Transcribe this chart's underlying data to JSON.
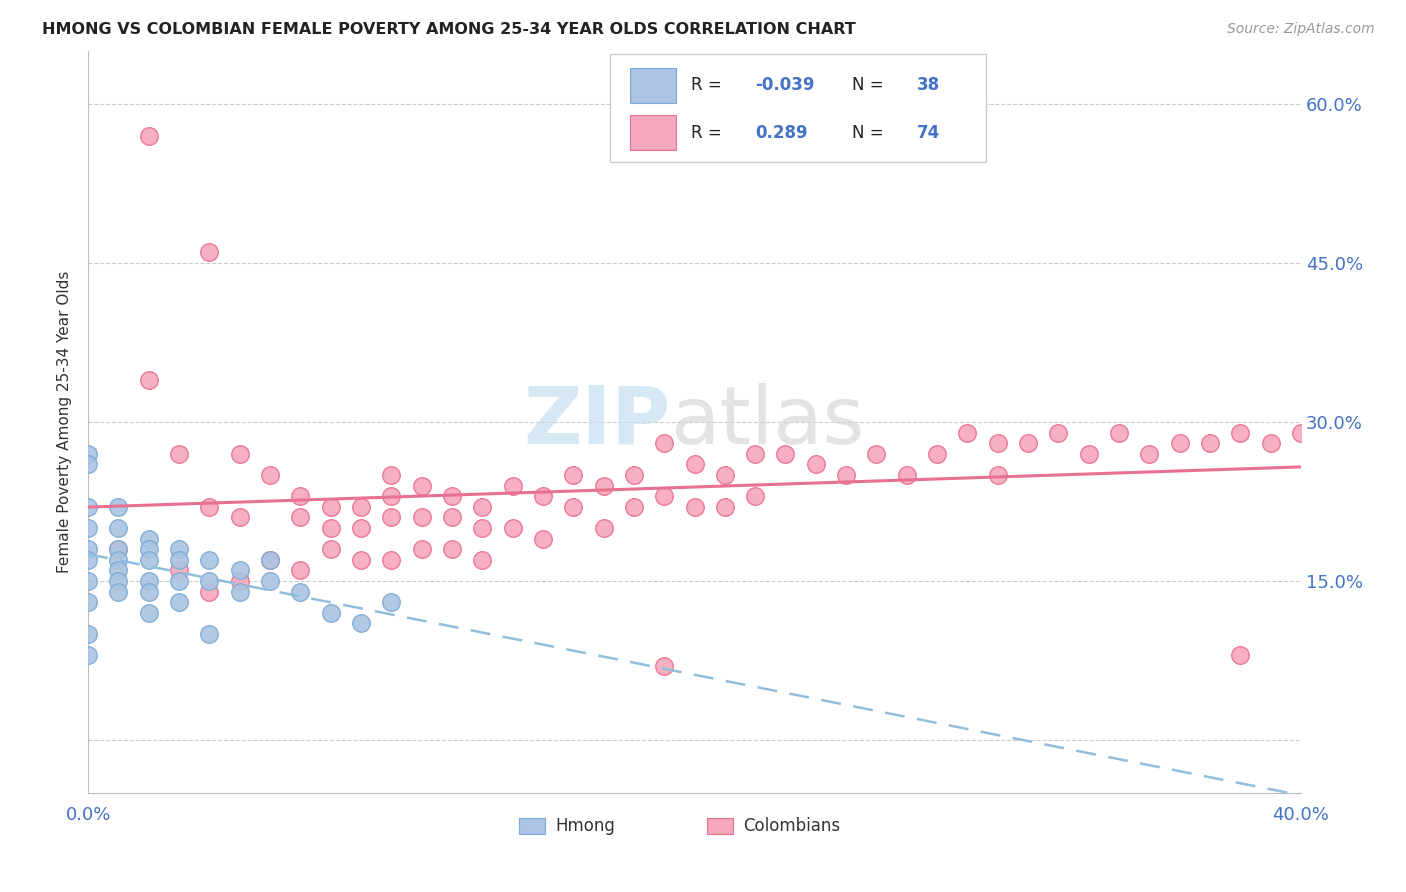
{
  "title": "HMONG VS COLOMBIAN FEMALE POVERTY AMONG 25-34 YEAR OLDS CORRELATION CHART",
  "source": "Source: ZipAtlas.com",
  "ylabel": "Female Poverty Among 25-34 Year Olds",
  "yticks": [
    0.0,
    0.15,
    0.3,
    0.45,
    0.6
  ],
  "ytick_labels": [
    "",
    "15.0%",
    "30.0%",
    "45.0%",
    "60.0%"
  ],
  "xrange": [
    0.0,
    0.4
  ],
  "yrange": [
    -0.05,
    0.65
  ],
  "hmong_color": "#aac4e2",
  "hmong_edge_color": "#7baad4",
  "colombian_color": "#f5a8bb",
  "colombian_edge_color": "#e87090",
  "hmong_R": -0.039,
  "hmong_N": 38,
  "colombian_R": 0.289,
  "colombian_N": 74,
  "trend_hmong_color": "#90bedd",
  "trend_colombian_color": "#e87090",
  "hmong_x": [
    0.0,
    0.0,
    0.0,
    0.0,
    0.0,
    0.0,
    0.0,
    0.0,
    0.0,
    0.0,
    0.01,
    0.01,
    0.01,
    0.01,
    0.01,
    0.01,
    0.01,
    0.02,
    0.02,
    0.02,
    0.02,
    0.02,
    0.02,
    0.03,
    0.03,
    0.03,
    0.03,
    0.04,
    0.04,
    0.04,
    0.05,
    0.05,
    0.06,
    0.06,
    0.07,
    0.08,
    0.09,
    0.1
  ],
  "hmong_y": [
    0.27,
    0.26,
    0.22,
    0.2,
    0.18,
    0.17,
    0.15,
    0.13,
    0.1,
    0.08,
    0.22,
    0.2,
    0.18,
    0.17,
    0.16,
    0.15,
    0.14,
    0.19,
    0.18,
    0.17,
    0.15,
    0.14,
    0.12,
    0.18,
    0.17,
    0.15,
    0.13,
    0.17,
    0.15,
    0.1,
    0.16,
    0.14,
    0.17,
    0.15,
    0.14,
    0.12,
    0.11,
    0.13
  ],
  "colombian_x": [
    0.01,
    0.02,
    0.03,
    0.03,
    0.04,
    0.04,
    0.05,
    0.05,
    0.06,
    0.06,
    0.07,
    0.07,
    0.07,
    0.08,
    0.08,
    0.08,
    0.09,
    0.09,
    0.09,
    0.1,
    0.1,
    0.1,
    0.11,
    0.11,
    0.11,
    0.12,
    0.12,
    0.12,
    0.13,
    0.13,
    0.13,
    0.14,
    0.14,
    0.15,
    0.15,
    0.16,
    0.16,
    0.17,
    0.17,
    0.18,
    0.18,
    0.19,
    0.19,
    0.2,
    0.2,
    0.21,
    0.21,
    0.22,
    0.22,
    0.23,
    0.24,
    0.25,
    0.26,
    0.27,
    0.28,
    0.29,
    0.3,
    0.3,
    0.31,
    0.32,
    0.33,
    0.34,
    0.35,
    0.36,
    0.37,
    0.38,
    0.39,
    0.4,
    0.02,
    0.04,
    0.05,
    0.1,
    0.19,
    0.38
  ],
  "colombian_y": [
    0.18,
    0.57,
    0.27,
    0.16,
    0.22,
    0.14,
    0.21,
    0.15,
    0.25,
    0.17,
    0.23,
    0.21,
    0.16,
    0.22,
    0.2,
    0.18,
    0.22,
    0.2,
    0.17,
    0.23,
    0.21,
    0.17,
    0.24,
    0.21,
    0.18,
    0.23,
    0.21,
    0.18,
    0.22,
    0.2,
    0.17,
    0.24,
    0.2,
    0.23,
    0.19,
    0.25,
    0.22,
    0.24,
    0.2,
    0.25,
    0.22,
    0.28,
    0.23,
    0.26,
    0.22,
    0.25,
    0.22,
    0.27,
    0.23,
    0.27,
    0.26,
    0.25,
    0.27,
    0.25,
    0.27,
    0.29,
    0.28,
    0.25,
    0.28,
    0.29,
    0.27,
    0.29,
    0.27,
    0.28,
    0.28,
    0.29,
    0.28,
    0.29,
    0.34,
    0.46,
    0.27,
    0.25,
    0.07,
    0.08
  ]
}
